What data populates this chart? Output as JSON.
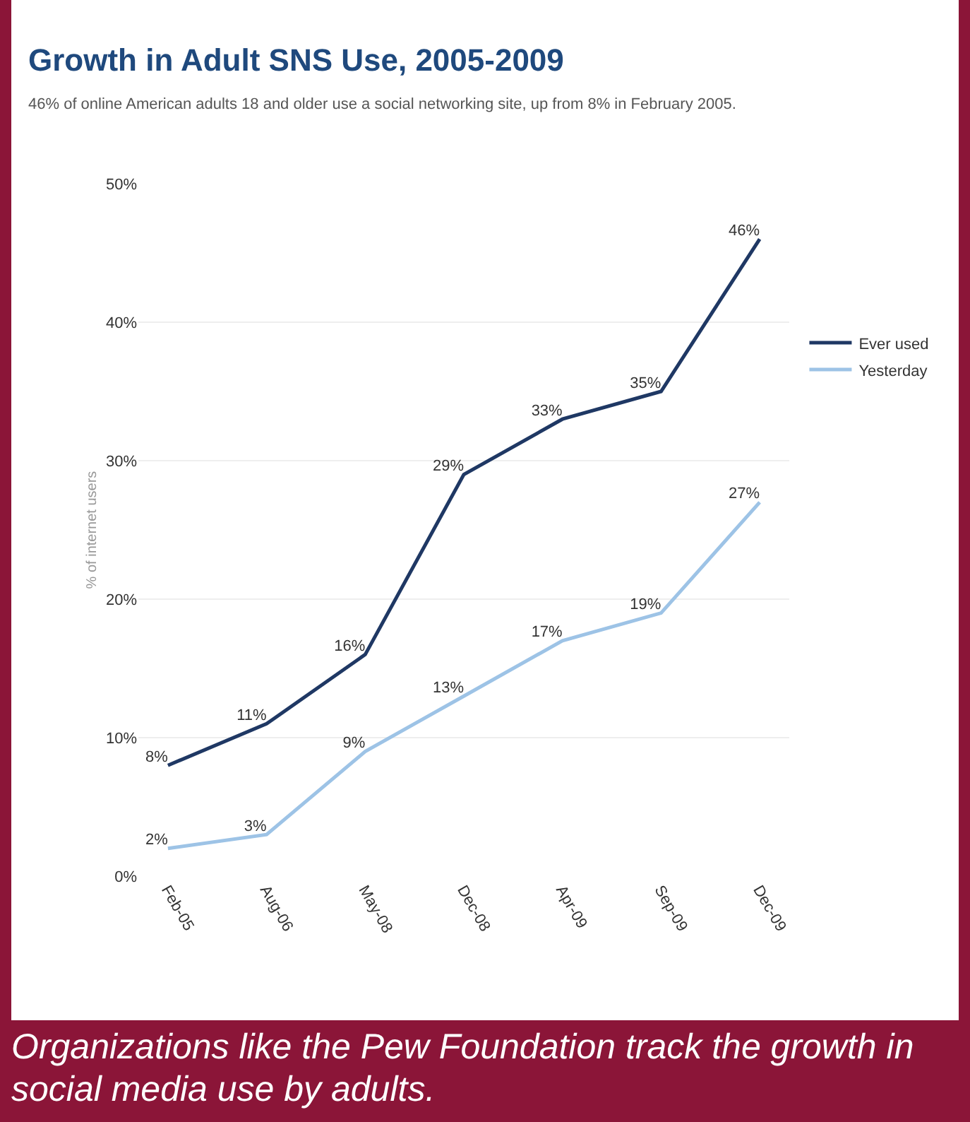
{
  "chart_data": {
    "type": "line",
    "title": "Growth in Adult SNS Use, 2005-2009",
    "subtitle": "46% of online American adults 18 and older use a social networking site, up from 8% in February 2005.",
    "ylabel": "% of internet users",
    "categories": [
      "Feb-05",
      "Aug-06",
      "May-08",
      "Dec-08",
      "Apr-09",
      "Sep-09",
      "Dec-09"
    ],
    "series": [
      {
        "name": "Ever used",
        "color": "#1f3864",
        "values": [
          8,
          11,
          16,
          29,
          33,
          35,
          46
        ],
        "value_labels": [
          "8%",
          "11%",
          "16%",
          "29%",
          "33%",
          "35%",
          "46%"
        ]
      },
      {
        "name": "Yesterday",
        "color": "#9dc3e6",
        "values": [
          2,
          3,
          9,
          13,
          17,
          19,
          27
        ],
        "value_labels": [
          "2%",
          "3%",
          "9%",
          "13%",
          "17%",
          "19%",
          "27%"
        ]
      }
    ],
    "ylim": [
      0,
      50
    ],
    "yticks": [
      {
        "value": 0,
        "label": "0%"
      },
      {
        "value": 10,
        "label": "10%"
      },
      {
        "value": 20,
        "label": "20%"
      },
      {
        "value": 30,
        "label": "30%"
      },
      {
        "value": 40,
        "label": "40%"
      },
      {
        "value": 50,
        "label": "50%"
      }
    ],
    "grid": "y",
    "legend": "right",
    "marker": "none",
    "line_style": "solid",
    "annotations": [
      "Organizations like the Pew Foundation track the growth in social media use by adults."
    ]
  }
}
